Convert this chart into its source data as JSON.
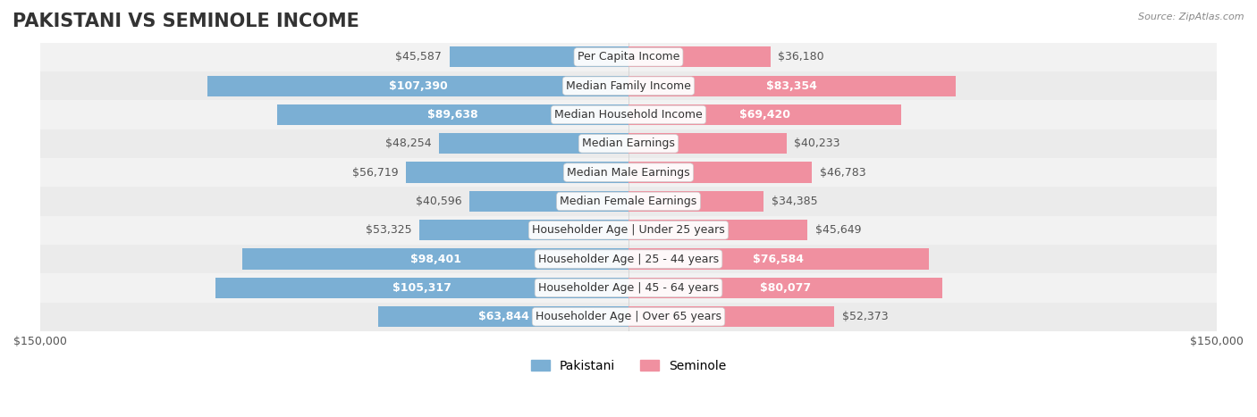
{
  "title": "PAKISTANI VS SEMINOLE INCOME",
  "source": "Source: ZipAtlas.com",
  "categories": [
    "Per Capita Income",
    "Median Family Income",
    "Median Household Income",
    "Median Earnings",
    "Median Male Earnings",
    "Median Female Earnings",
    "Householder Age | Under 25 years",
    "Householder Age | 25 - 44 years",
    "Householder Age | 45 - 64 years",
    "Householder Age | Over 65 years"
  ],
  "pakistani_values": [
    45587,
    107390,
    89638,
    48254,
    56719,
    40596,
    53325,
    98401,
    105317,
    63844
  ],
  "seminole_values": [
    36180,
    83354,
    69420,
    40233,
    46783,
    34385,
    45649,
    76584,
    80077,
    52373
  ],
  "pakistani_labels": [
    "$45,587",
    "$107,390",
    "$89,638",
    "$48,254",
    "$56,719",
    "$40,596",
    "$53,325",
    "$98,401",
    "$105,317",
    "$63,844"
  ],
  "seminole_labels": [
    "$36,180",
    "$83,354",
    "$69,420",
    "$40,233",
    "$46,783",
    "$34,385",
    "$45,649",
    "$76,584",
    "$80,077",
    "$52,373"
  ],
  "max_value": 150000,
  "pakistani_color": "#7bafd4",
  "seminole_color": "#f090a0",
  "pakistani_label_color_default": "#666666",
  "pakistani_label_color_white": "#ffffff",
  "seminole_label_color_default": "#666666",
  "row_bg_color": "#f0f0f0",
  "row_bg_alt": "#e8e8e8",
  "background_color": "#ffffff",
  "title_fontsize": 15,
  "label_fontsize": 9,
  "axis_label_fontsize": 9,
  "legend_fontsize": 10,
  "white_label_threshold": 60000
}
